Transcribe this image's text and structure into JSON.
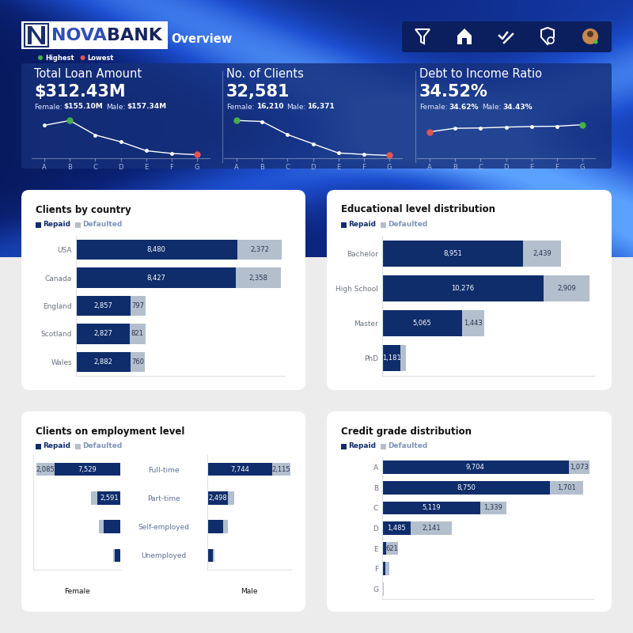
{
  "header": {
    "brand": [
      "NOVA",
      "BANK"
    ],
    "page": "Overview",
    "highlight": [
      {
        "label": "Highest",
        "color": "#46b04a"
      },
      {
        "label": "Lowest",
        "color": "#e25552"
      }
    ]
  },
  "chart_data": [
    {
      "type": "line",
      "title": "Total Loan Amount",
      "kpi": "$312.43M",
      "breakdown": [
        {
          "label": "Female:",
          "value": "$155.10M"
        },
        {
          "label": "Male:",
          "value": "$157.34M"
        }
      ],
      "categories": [
        "A",
        "B",
        "C",
        "D",
        "E",
        "F",
        "G"
      ],
      "values": [
        88,
        102,
        60,
        40,
        14,
        6,
        2.4
      ],
      "ylim": [
        -8,
        112
      ],
      "yticks": [],
      "tick_labels": "x",
      "color": "#ffffff",
      "marker": "circle"
    },
    {
      "type": "line",
      "title": "No. of Clients",
      "kpi": "32,581",
      "breakdown": [
        {
          "label": "Female:",
          "value": "16,210"
        },
        {
          "label": "Male:",
          "value": "16,371"
        }
      ],
      "categories": [
        "A",
        "B",
        "C",
        "D",
        "E",
        "F",
        "G"
      ],
      "values": [
        10777,
        10451,
        6458,
        3626,
        816,
        380,
        73
      ],
      "ylim": [
        -800,
        11800
      ],
      "yticks": [],
      "tick_labels": "x",
      "color": "#ffffff",
      "marker": "circle"
    },
    {
      "type": "line",
      "title": "Debt to Income Ratio",
      "kpi": "34.52%",
      "breakdown": [
        {
          "label": "Female:",
          "value": "34.62%"
        },
        {
          "label": "Male:",
          "value": "34.43%"
        }
      ],
      "categories": [
        "A",
        "B",
        "C",
        "D",
        "E",
        "F",
        "G"
      ],
      "values": [
        33.0,
        34.2,
        34.3,
        34.6,
        34.8,
        34.9,
        35.4
      ],
      "ylim": [
        24,
        38
      ],
      "yticks": [],
      "tick_labels": "x",
      "color": "#ffffff",
      "marker": "circle"
    },
    {
      "type": "bar",
      "title": "Clients by country",
      "orientation": "horizontal",
      "stacked": true,
      "data_labels": true,
      "tick_labels": "y",
      "categories": [
        "USA",
        "Canada",
        "England",
        "Scotland",
        "Wales"
      ],
      "xlim": [
        0,
        11000
      ],
      "xticks": [],
      "series": [
        {
          "name": "Repaid",
          "color": "#0f2d6b",
          "values": [
            8480,
            8427,
            2857,
            2827,
            2882
          ],
          "value_labels": [
            "8,480",
            "8,427",
            "2,857",
            "2,827",
            "2,882"
          ]
        },
        {
          "name": "Defaulted",
          "color": "#b3bfcd",
          "values": [
            2372,
            2358,
            797,
            821,
            760
          ],
          "value_labels": [
            "2,372",
            "2,358",
            "797",
            "821",
            "760"
          ]
        }
      ]
    },
    {
      "type": "bar",
      "title": "Educational level distribution",
      "orientation": "horizontal",
      "stacked": true,
      "data_labels": true,
      "tick_labels": "y",
      "categories": [
        "Bachelor",
        "High School",
        "Master",
        "PhD"
      ],
      "xlim": [
        0,
        13500
      ],
      "xticks": [],
      "series": [
        {
          "name": "Repaid",
          "color": "#0f2d6b",
          "values": [
            8951,
            10276,
            5065,
            1181
          ],
          "value_labels": [
            "8,951",
            "10,276",
            "5,065",
            "1,181"
          ]
        },
        {
          "name": "Defaulted",
          "color": "#b3bfcd",
          "values": [
            2439,
            2909,
            1443,
            317
          ],
          "value_labels": [
            "2,439",
            "2,909",
            "1,443",
            null
          ]
        }
      ]
    },
    {
      "type": "bar",
      "title": "Clients on employment level",
      "orientation": "horizontal",
      "stacked": true,
      "data_labels": true,
      "tick_labels": "y",
      "categories": [
        "Full-time",
        "Part-time",
        "Self-employed",
        "Unemployed"
      ],
      "panels": [
        {
          "name": "Female",
          "xlim": [
            10000,
            0
          ],
          "xticks": [],
          "series": [
            {
              "name": "Repaid",
              "color": "#0f2d6b",
              "values": [
                7529,
                2591,
                1920,
                620
              ],
              "value_labels": [
                "7,529",
                "2,591",
                null,
                null
              ]
            },
            {
              "name": "Defaulted",
              "color": "#b3bfcd",
              "values": [
                2085,
                750,
                550,
                165
              ],
              "value_labels": [
                "2,085",
                null,
                null,
                null
              ]
            }
          ]
        },
        {
          "name": "Male",
          "xlim": [
            0,
            10000
          ],
          "xticks": [],
          "series": [
            {
              "name": "Repaid",
              "color": "#0f2d6b",
              "values": [
                7744,
                2498,
                1917,
                654
              ],
              "value_labels": [
                "7,744",
                "2,498",
                null,
                null
              ]
            },
            {
              "name": "Defaulted",
              "color": "#b3bfcd",
              "values": [
                2115,
                700,
                563,
                180
              ],
              "value_labels": [
                "2,115",
                null,
                null,
                null
              ]
            }
          ]
        }
      ]
    },
    {
      "type": "bar",
      "title": "Credit grade distribution",
      "orientation": "horizontal",
      "stacked": true,
      "data_labels": true,
      "tick_labels": "y",
      "categories": [
        "A",
        "B",
        "C",
        "D",
        "E",
        "F",
        "G"
      ],
      "xlim": [
        0,
        11000
      ],
      "xticks": [],
      "series": [
        {
          "name": "Repaid",
          "color": "#0f2d6b",
          "values": [
            9704,
            8750,
            5119,
            1485,
            195,
            170,
            50
          ],
          "value_labels": [
            "9,704",
            "8,750",
            "5,119",
            "1,485",
            null,
            null,
            null
          ]
        },
        {
          "name": "Defaulted",
          "color": "#b3bfcd",
          "values": [
            1073,
            1701,
            1339,
            2141,
            621,
            210,
            23
          ],
          "value_labels": [
            "1,073",
            "1,701",
            "1,339",
            "2,141",
            "621",
            null,
            null
          ]
        }
      ]
    }
  ]
}
